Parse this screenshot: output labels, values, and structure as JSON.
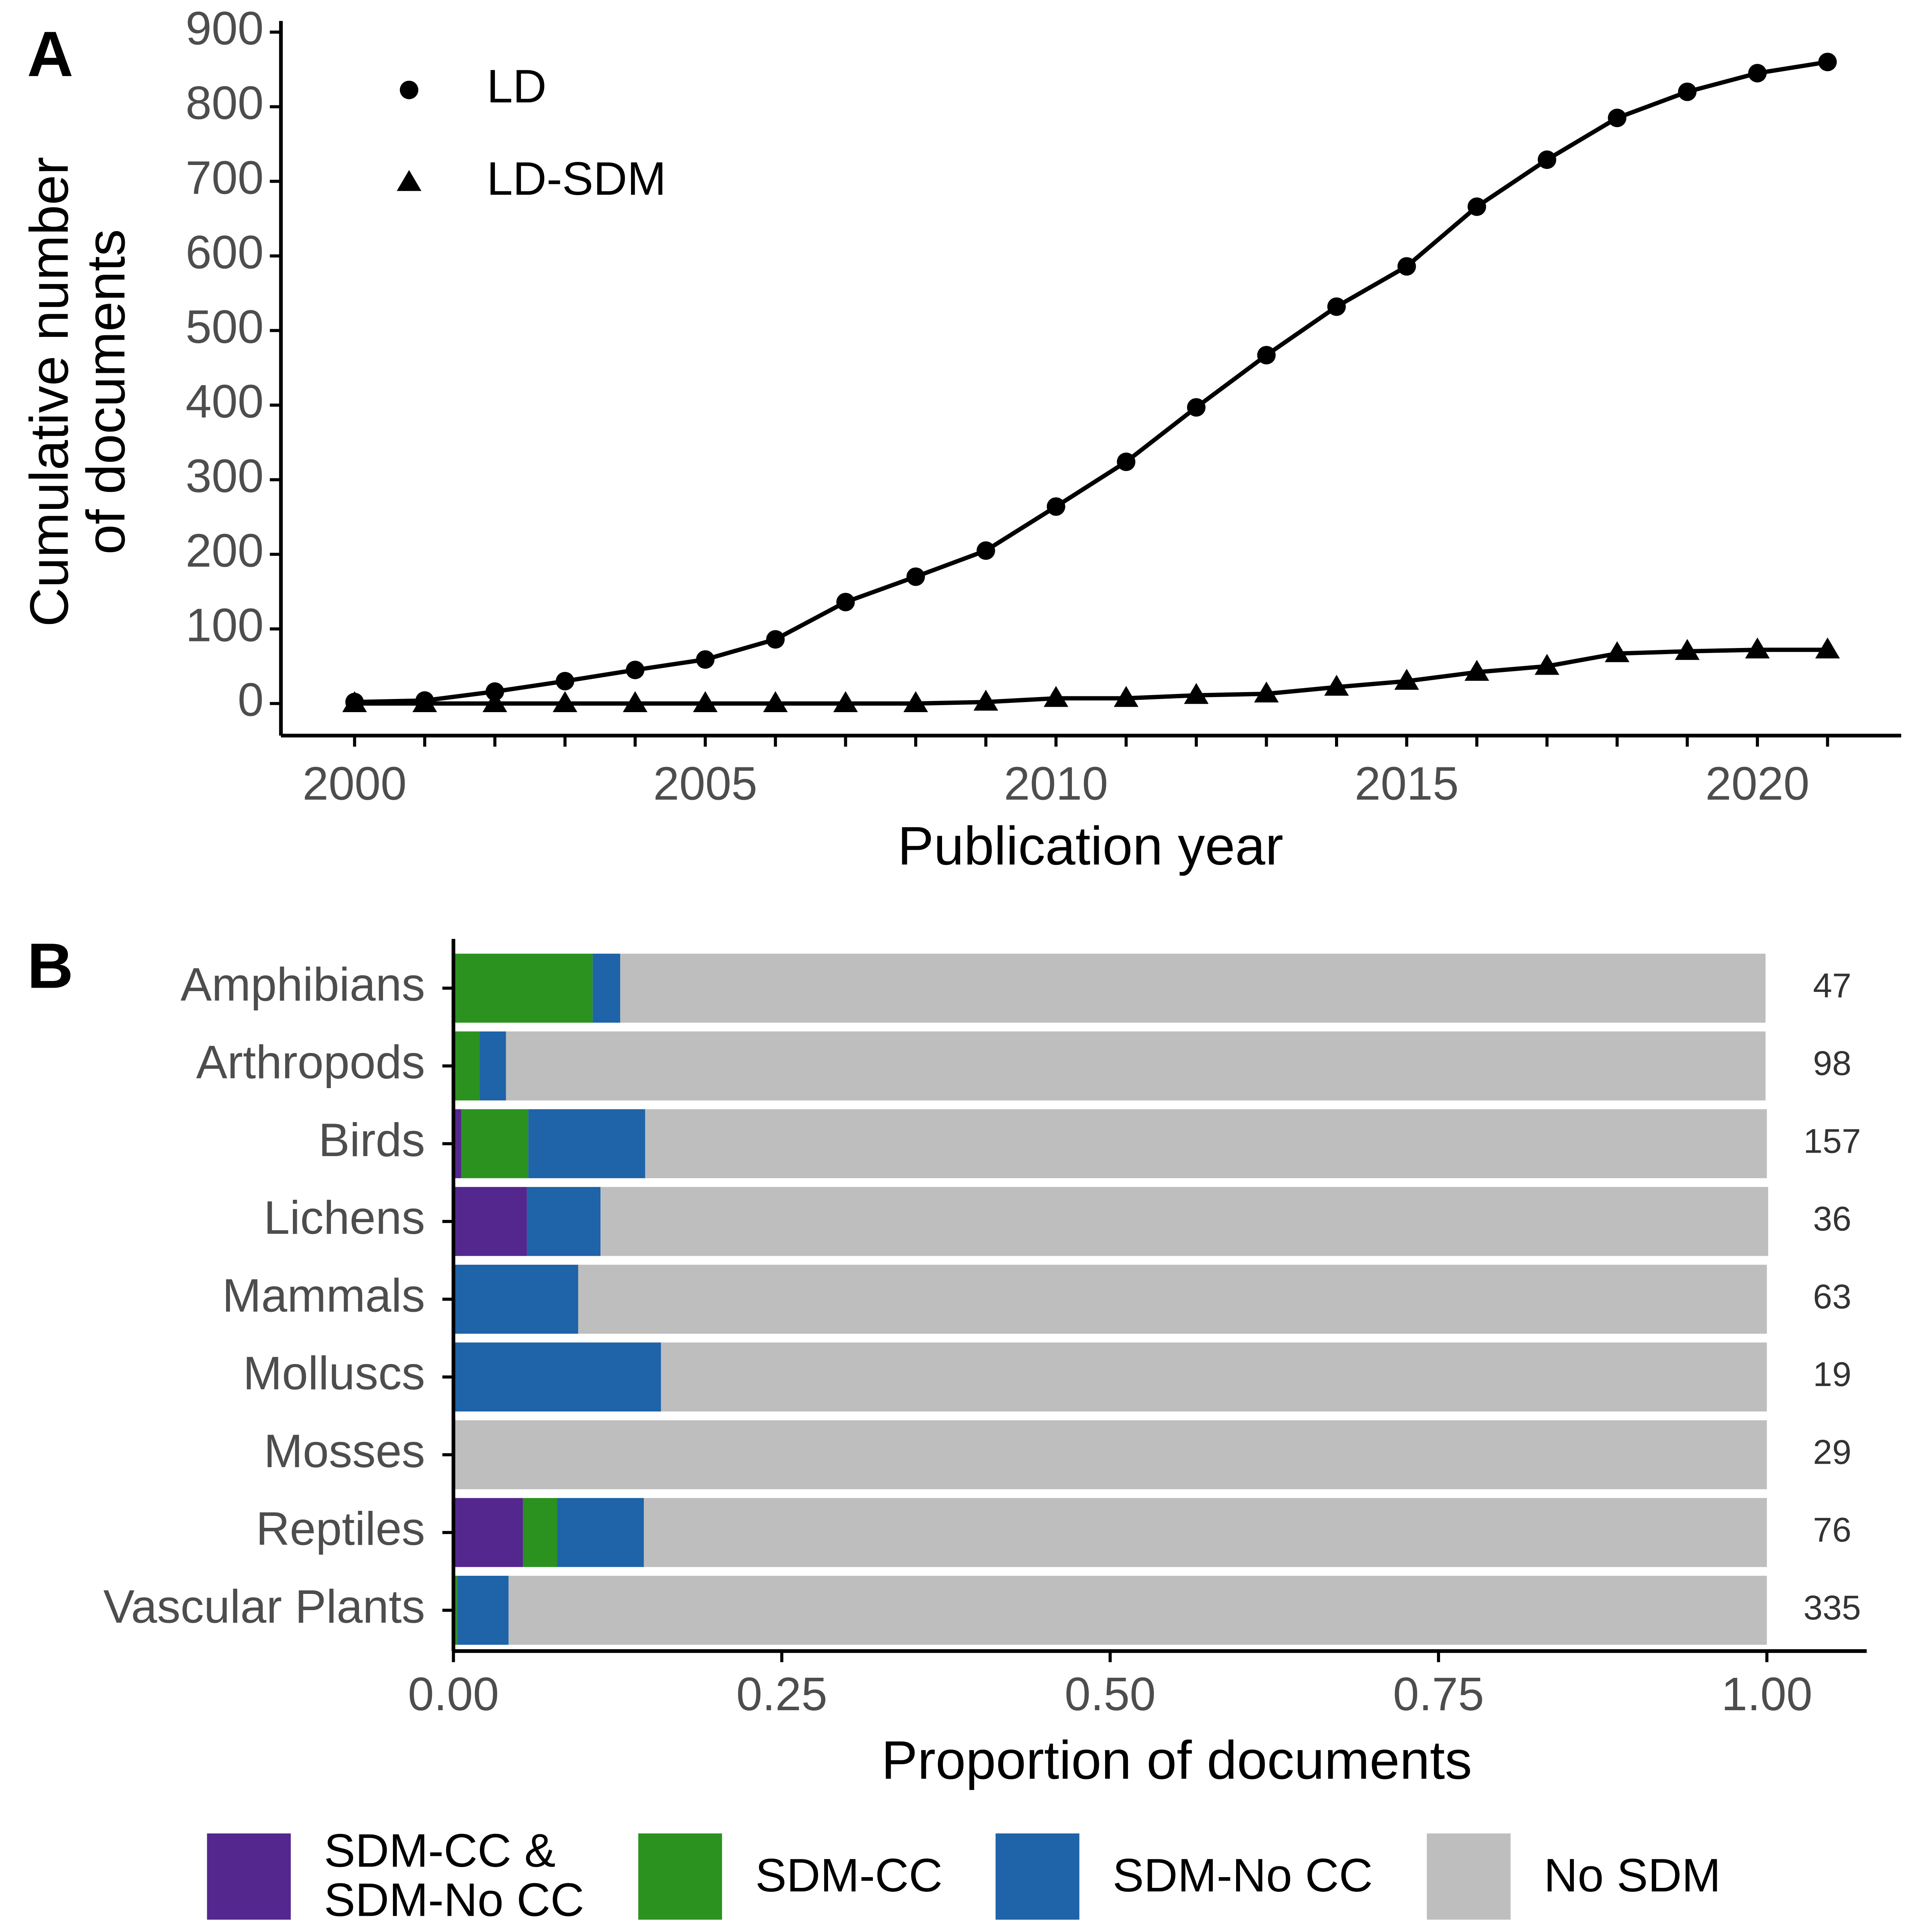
{
  "chart_data": [
    {
      "type": "line",
      "panel_label": "A",
      "x": [
        2000,
        2001,
        2002,
        2003,
        2004,
        2005,
        2006,
        2007,
        2008,
        2009,
        2010,
        2011,
        2012,
        2013,
        2014,
        2015,
        2016,
        2017,
        2018,
        2019,
        2020,
        2021
      ],
      "series": [
        {
          "name": "LD",
          "color": "#000000",
          "marker": "circle",
          "values": [
            2,
            4,
            16,
            30,
            45,
            59,
            86,
            136,
            170,
            205,
            264,
            324,
            397,
            467,
            532,
            586,
            666,
            729,
            785,
            820,
            845,
            860
          ]
        },
        {
          "name": "LD-SDM",
          "color": "#000000",
          "marker": "triangle",
          "values": [
            0,
            0,
            0,
            0,
            0,
            0,
            0,
            0,
            0,
            2,
            7,
            7,
            11,
            13,
            22,
            30,
            42,
            50,
            67,
            70,
            72,
            72
          ]
        }
      ],
      "xlabel": "Publication year",
      "ylabel": "Cumulative number\nof documents",
      "xlim": [
        1998.95,
        2022.05
      ],
      "xticks": [
        2000,
        2005,
        2010,
        2015,
        2020
      ],
      "xminorticks": [
        2001,
        2002,
        2003,
        2004,
        2006,
        2007,
        2008,
        2009,
        2011,
        2012,
        2013,
        2014,
        2016,
        2017,
        2018,
        2019,
        2021
      ],
      "ylim": [
        -43,
        915
      ],
      "yticks": [
        0,
        100,
        200,
        300,
        400,
        500,
        600,
        700,
        800,
        900
      ],
      "legend": "top-left"
    },
    {
      "type": "stacked-barh",
      "panel_label": "B",
      "categories": [
        "Amphibians",
        "Arthropods",
        "Birds",
        "Lichens",
        "Mammals",
        "Molluscs",
        "Mosses",
        "Reptiles",
        "Vascular Plants"
      ],
      "counts": [
        47,
        98,
        157,
        36,
        63,
        19,
        29,
        76,
        335
      ],
      "series": [
        {
          "name": "SDM-CC &\nSDM-No CC",
          "color": "#54278f",
          "values": [
            0,
            0,
            0.006,
            0.056,
            0,
            0,
            0,
            0.053,
            0
          ]
        },
        {
          "name": "SDM-CC",
          "color": "#2b9220",
          "values": [
            0.106,
            0.02,
            0.051,
            0,
            0,
            0,
            0,
            0.026,
            0.003
          ]
        },
        {
          "name": "SDM-No CC",
          "color": "#1f63a8",
          "values": [
            0.021,
            0.02,
            0.089,
            0.056,
            0.095,
            0.158,
            0,
            0.066,
            0.039
          ]
        },
        {
          "name": "No SDM",
          "color": "#bebebe",
          "values": [
            0.872,
            0.959,
            0.854,
            0.889,
            0.905,
            0.842,
            1,
            0.855,
            0.958
          ]
        }
      ],
      "xlabel": "Proportion of documents",
      "xlim": [
        0,
        1.076
      ],
      "xticks": [
        {
          "value": 0,
          "label": "0.00"
        },
        {
          "value": 0.25,
          "label": "0.25"
        },
        {
          "value": 0.5,
          "label": "0.50"
        },
        {
          "value": 0.75,
          "label": "0.75"
        },
        {
          "value": 1,
          "label": "1.00"
        }
      ],
      "legend": "bottom"
    }
  ]
}
